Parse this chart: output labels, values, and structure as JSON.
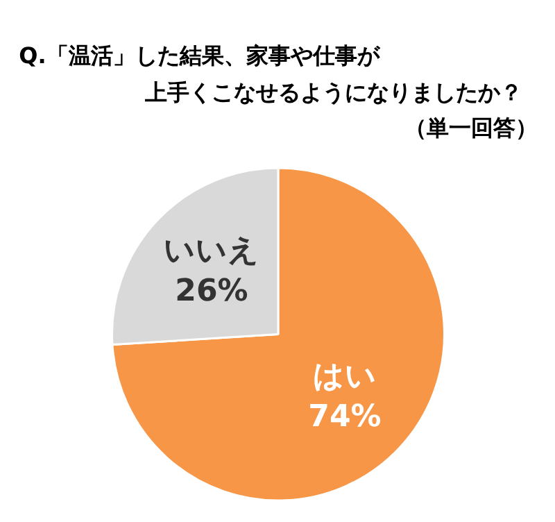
{
  "chart_data": {
    "type": "pie",
    "title": "Q.「温活」した結果、家事や仕事が上手くこなせるようになりましたか？",
    "subtitle": "（単一回答）",
    "categories": [
      "はい",
      "いいえ"
    ],
    "values": [
      74,
      26
    ],
    "colors": [
      "#f79646",
      "#d9d9d9"
    ],
    "value_labels": [
      "74%",
      "26%"
    ]
  }
}
